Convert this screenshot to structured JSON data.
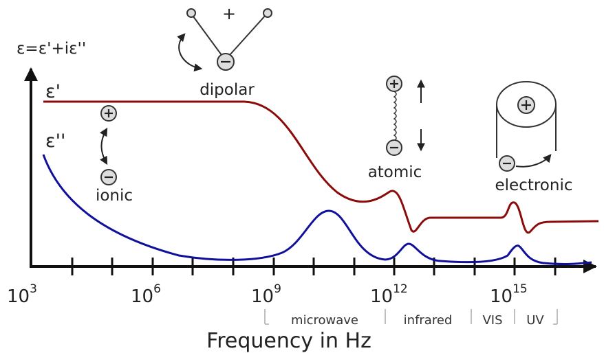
{
  "axis_label_y": "ε=ε'+iε''",
  "curve_labels": {
    "real": "ε'",
    "imaginary": "ε''"
  },
  "mechanisms": {
    "dipolar": "dipolar",
    "dipolar_plus": "+",
    "ionic": "ionic",
    "atomic": "atomic",
    "electronic": "electronic"
  },
  "x_ticks": [
    {
      "base": "10",
      "exp": "3"
    },
    {
      "base": "10",
      "exp": "6"
    },
    {
      "base": "10",
      "exp": "9"
    },
    {
      "base": "10",
      "exp": "12"
    },
    {
      "base": "10",
      "exp": "15"
    }
  ],
  "bands": [
    "microwave",
    "infrared",
    "VIS",
    "UV"
  ],
  "axis_label_x": "Frequency in Hz"
}
